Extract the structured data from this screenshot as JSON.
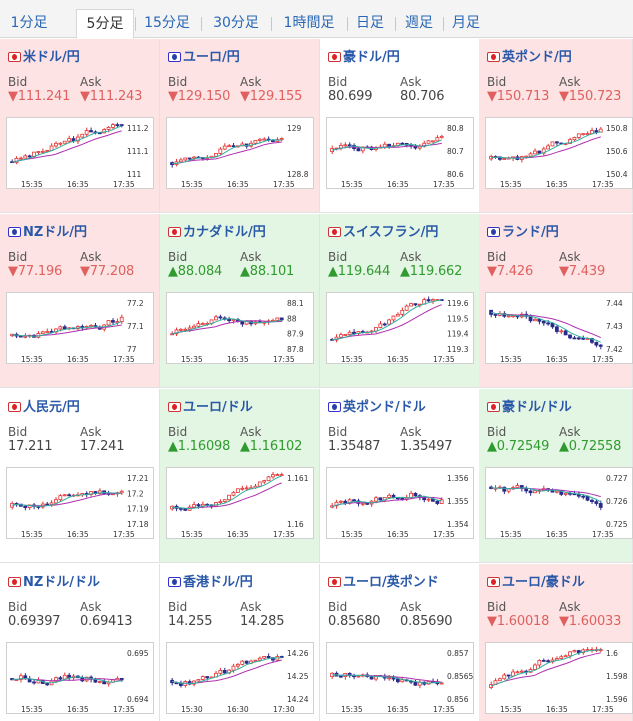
{
  "tabs": [
    "1分足",
    "5分足",
    "15分足",
    "30分足",
    "1時間足",
    "日足",
    "週足",
    "月足"
  ],
  "active_tab": "5分足",
  "bid_label": "Bid",
  "ask_label": "Ask",
  "colors": {
    "down_bg": "#fde3e3",
    "up_bg": "#e3f6e3",
    "bull": "#e33333",
    "bear": "#2a2a8a",
    "ma_long": "#b030b0",
    "ma_short": "#30b0a0"
  },
  "pairs": [
    {
      "name": "米ドル/円",
      "flag": "us-flag-icon",
      "dir": "down",
      "bid": "▼111.241",
      "ask": "▼111.243",
      "ticks": [
        "111.2",
        "111.1",
        "111"
      ],
      "times": [
        "15:35",
        "16:35",
        "17:35"
      ],
      "trend": 0.75
    },
    {
      "name": "ユーロ/円",
      "flag": "eu-flag-icon",
      "dir": "down",
      "bid": "▼129.150",
      "ask": "▼129.155",
      "ticks": [
        "129",
        "128.8"
      ],
      "times": [
        "15:35",
        "16:35",
        "17:35"
      ],
      "trend": 0.8
    },
    {
      "name": "豪ドル/円",
      "flag": "au-flag-icon",
      "dir": "flat",
      "bid": "80.699",
      "ask": "80.706",
      "ticks": [
        "80.8",
        "80.7",
        "80.6"
      ],
      "times": [
        "15:35",
        "16:35",
        "17:35"
      ],
      "trend": 0.2
    },
    {
      "name": "英ポンド/円",
      "flag": "gb-flag-icon",
      "dir": "down",
      "bid": "▼150.713",
      "ask": "▼150.723",
      "ticks": [
        "150.8",
        "150.6",
        "150.4"
      ],
      "times": [
        "15:35",
        "16:35",
        "17:35"
      ],
      "trend": 0.6
    },
    {
      "name": "NZドル/円",
      "flag": "nz-flag-icon",
      "dir": "down",
      "bid": "▼77.196",
      "ask": "▼77.208",
      "ticks": [
        "77.2",
        "77.1",
        "77"
      ],
      "times": [
        "15:35",
        "16:35",
        "17:35"
      ],
      "trend": 0.7
    },
    {
      "name": "カナダドル/円",
      "flag": "ca-flag-icon",
      "dir": "up",
      "bid": "▲88.084",
      "ask": "▲88.101",
      "ticks": [
        "88.1",
        "88",
        "87.9",
        "87.8"
      ],
      "times": [
        "15:35",
        "16:35",
        "17:35"
      ],
      "trend": 0.6
    },
    {
      "name": "スイスフラン/円",
      "flag": "ch-flag-icon",
      "dir": "up",
      "bid": "▲119.644",
      "ask": "▲119.662",
      "ticks": [
        "119.6",
        "119.5",
        "119.4",
        "119.3"
      ],
      "times": [
        "15:35",
        "16:35",
        "17:35"
      ],
      "trend": 0.9
    },
    {
      "name": "ランド/円",
      "flag": "za-flag-icon",
      "dir": "down",
      "bid": "▼7.426",
      "ask": "▼7.439",
      "ticks": [
        "7.44",
        "7.43",
        "7.42"
      ],
      "times": [
        "15:35",
        "16:35",
        "17:35"
      ],
      "trend": -0.7
    },
    {
      "name": "人民元/円",
      "flag": "cn-flag-icon",
      "dir": "flat",
      "bid": "17.211",
      "ask": "17.241",
      "ticks": [
        "17.21",
        "17.2",
        "17.19",
        "17.18"
      ],
      "times": [
        "15:35",
        "16:35",
        "17:35"
      ],
      "trend": 0.5
    },
    {
      "name": "ユーロ/ドル",
      "flag": "eu-flag-icon",
      "dir": "up",
      "bid": "▲1.16098",
      "ask": "▲1.16102",
      "ticks": [
        "1.161",
        "1.16"
      ],
      "times": [
        "15:35",
        "16:35",
        "17:35"
      ],
      "trend": 0.6
    },
    {
      "name": "英ポンド/ドル",
      "flag": "gb-flag-icon",
      "dir": "flat",
      "bid": "1.35487",
      "ask": "1.35497",
      "ticks": [
        "1.356",
        "1.355",
        "1.354"
      ],
      "times": [
        "15:35",
        "16:35",
        "17:35"
      ],
      "trend": 0.5
    },
    {
      "name": "豪ドル/ドル",
      "flag": "au-flag-icon",
      "dir": "up",
      "bid": "▲0.72549",
      "ask": "▲0.72558",
      "ticks": [
        "0.727",
        "0.726",
        "0.725"
      ],
      "times": [
        "15:35",
        "16:35",
        "17:35"
      ],
      "trend": -0.6
    },
    {
      "name": "NZドル/ドル",
      "flag": "nz-flag-icon",
      "dir": "flat",
      "bid": "0.69397",
      "ask": "0.69413",
      "ticks": [
        "0.695",
        "0.694"
      ],
      "times": [
        "15:35",
        "16:35",
        "17:35"
      ],
      "trend": 0.3
    },
    {
      "name": "香港ドル/円",
      "flag": "hk-flag-icon",
      "dir": "flat",
      "bid": "14.255",
      "ask": "14.285",
      "ticks": [
        "14.26",
        "14.25",
        "14.24"
      ],
      "times": [
        "15:30",
        "16:30",
        "17:30"
      ],
      "trend": 0.4
    },
    {
      "name": "ユーロ/英ポンド",
      "flag": "eu-flag-icon",
      "dir": "flat",
      "bid": "0.85680",
      "ask": "0.85690",
      "ticks": [
        "0.857",
        "0.8565",
        "0.856"
      ],
      "times": [
        "15:35",
        "16:35",
        "17:35"
      ],
      "trend": 0.2
    },
    {
      "name": "ユーロ/豪ドル",
      "flag": "eu-flag-icon",
      "dir": "down",
      "bid": "▼1.60018",
      "ask": "▼1.60033",
      "ticks": [
        "1.6",
        "1.598",
        "1.596"
      ],
      "times": [
        "15:35",
        "16:35",
        "17:35"
      ],
      "trend": 0.8
    }
  ]
}
